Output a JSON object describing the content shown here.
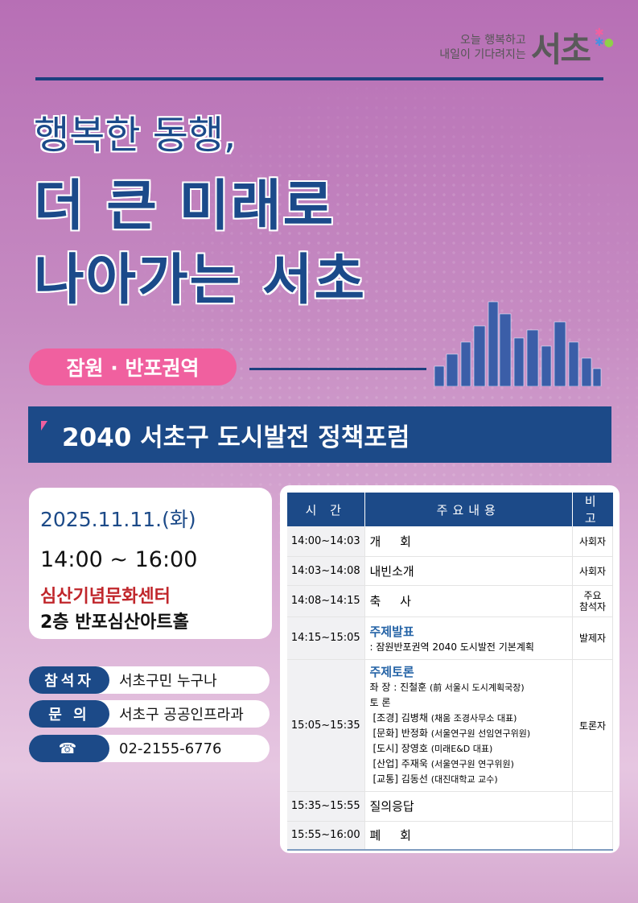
{
  "logo": {
    "slogan_line1": "오늘 행복하고",
    "slogan_line2": "내일이 기다려지는",
    "mark": "서초"
  },
  "title": {
    "line1": "행복한 동행,",
    "line2": "더 큰 미래로",
    "line3": "나아가는 서초"
  },
  "region_pill": "잠원 · 반포권역",
  "banner": "2040 서초구  도시발전 정책포럼",
  "info": {
    "date": "2025.11.11.(화)",
    "time": "14:00 ~ 16:00",
    "venue": "심산기념문화센터",
    "venue_detail": "2층 반포심산아트홀"
  },
  "contacts": [
    {
      "label": "참석자",
      "value": "서초구민 누구나"
    },
    {
      "label": "문 의",
      "value": "서초구 공공인프라과"
    },
    {
      "label": "☎",
      "icon": "phone-icon",
      "value": "02-2155-6776"
    }
  ],
  "schedule": {
    "headers": [
      "시 간",
      "주요내용",
      "비 고"
    ],
    "rows": [
      {
        "time": "14:00~14:03",
        "content": "개     회",
        "note": "사회자"
      },
      {
        "time": "14:03~14:08",
        "content": "내빈소개",
        "note": "사회자"
      },
      {
        "time": "14:08~14:15",
        "content": "축     사",
        "note": "주요\n참석자"
      },
      {
        "time": "14:15~15:05",
        "heading": "주제발표",
        "content": ": 잠원반포권역 2040 도시발전 기본계획",
        "note": "발제자"
      },
      {
        "time": "15:05~15:35",
        "heading": "주제토론",
        "chair": "좌 장 : 진철훈",
        "chair_aff": "(前 서울시 도시계획국장)",
        "panel_label": "토 론",
        "panelists": [
          {
            "field": "[조경] 김병채",
            "aff": "(채움 조경사무소 대표)"
          },
          {
            "field": "[문화] 반정화",
            "aff": "(서울연구원 선임연구위원)"
          },
          {
            "field": "[도시] 장영호",
            "aff": "(미래E&D 대표)"
          },
          {
            "field": "[산업] 주재욱",
            "aff": "(서울연구원 연구위원)"
          },
          {
            "field": "[교통] 김동선",
            "aff": "(대진대학교 교수)"
          }
        ],
        "note": "토론자"
      },
      {
        "time": "15:35~15:55",
        "content": "질의응답",
        "note": ""
      },
      {
        "time": "15:55~16:00",
        "content": "폐     회",
        "note": ""
      }
    ]
  },
  "colors": {
    "navy": "#1c4a88",
    "pink": "#f0609f",
    "venue_red": "#c0262b",
    "background": "#c68bc2"
  }
}
